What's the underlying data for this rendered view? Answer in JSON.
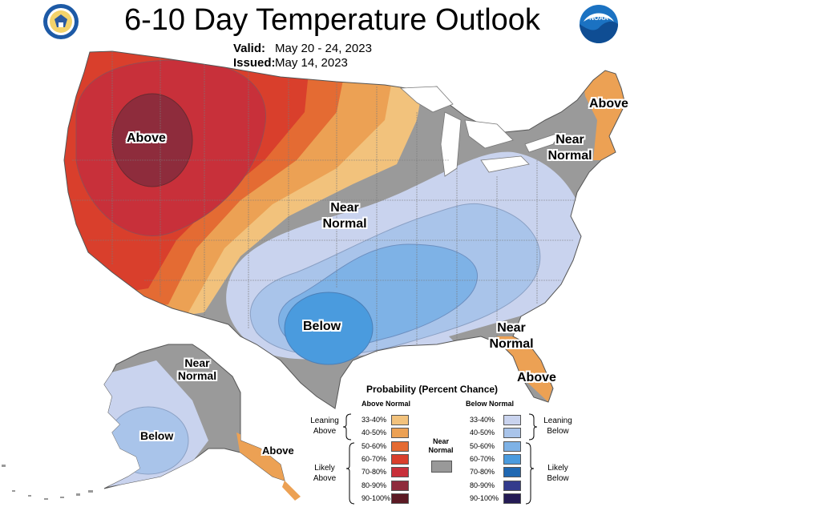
{
  "header": {
    "title": "6-10 Day Temperature Outlook",
    "valid_label": "Valid:",
    "valid_dates": "May 20 - 24, 2023",
    "issued_label": "Issued:",
    "issued_date": "May 14, 2023"
  },
  "logos": {
    "left": "commerce-seal-icon",
    "right": "noaa-logo-icon",
    "noaa_text": "NOAA"
  },
  "map_labels": {
    "west_above": "Above",
    "central_near_normal": "Near Normal",
    "northeast_near_normal": "Near Normal",
    "new_england_above": "Above",
    "texas_below": "Below",
    "southeast_near_normal": "Near Normal",
    "florida_above": "Above",
    "alaska_near_normal": "Near Normal",
    "alaska_below": "Below",
    "alaska_panhandle_above": "Above"
  },
  "legend": {
    "title": "Probability (Percent Chance)",
    "above_header": "Above Normal",
    "below_header": "Below Normal",
    "near_normal_label": "Near Normal",
    "leaning_above": "Leaning Above",
    "likely_above": "Likely Above",
    "leaning_below": "Leaning Below",
    "likely_below": "Likely Below",
    "above_bins": [
      {
        "label": "33-40%",
        "color": "#f2c27c"
      },
      {
        "label": "40-50%",
        "color": "#eca154"
      },
      {
        "label": "50-60%",
        "color": "#e46b33"
      },
      {
        "label": "60-70%",
        "color": "#d93f2c"
      },
      {
        "label": "70-80%",
        "color": "#c8303a"
      },
      {
        "label": "80-90%",
        "color": "#8e2c3c"
      },
      {
        "label": "90-100%",
        "color": "#5c1a24"
      }
    ],
    "below_bins": [
      {
        "label": "33-40%",
        "color": "#c9d3ee"
      },
      {
        "label": "40-50%",
        "color": "#a9c4ea"
      },
      {
        "label": "50-60%",
        "color": "#7eb2e6"
      },
      {
        "label": "60-70%",
        "color": "#4a9bde"
      },
      {
        "label": "70-80%",
        "color": "#1f68b2"
      },
      {
        "label": "80-90%",
        "color": "#333b8c"
      },
      {
        "label": "90-100%",
        "color": "#241b55"
      }
    ],
    "near_normal_color": "#999999"
  }
}
